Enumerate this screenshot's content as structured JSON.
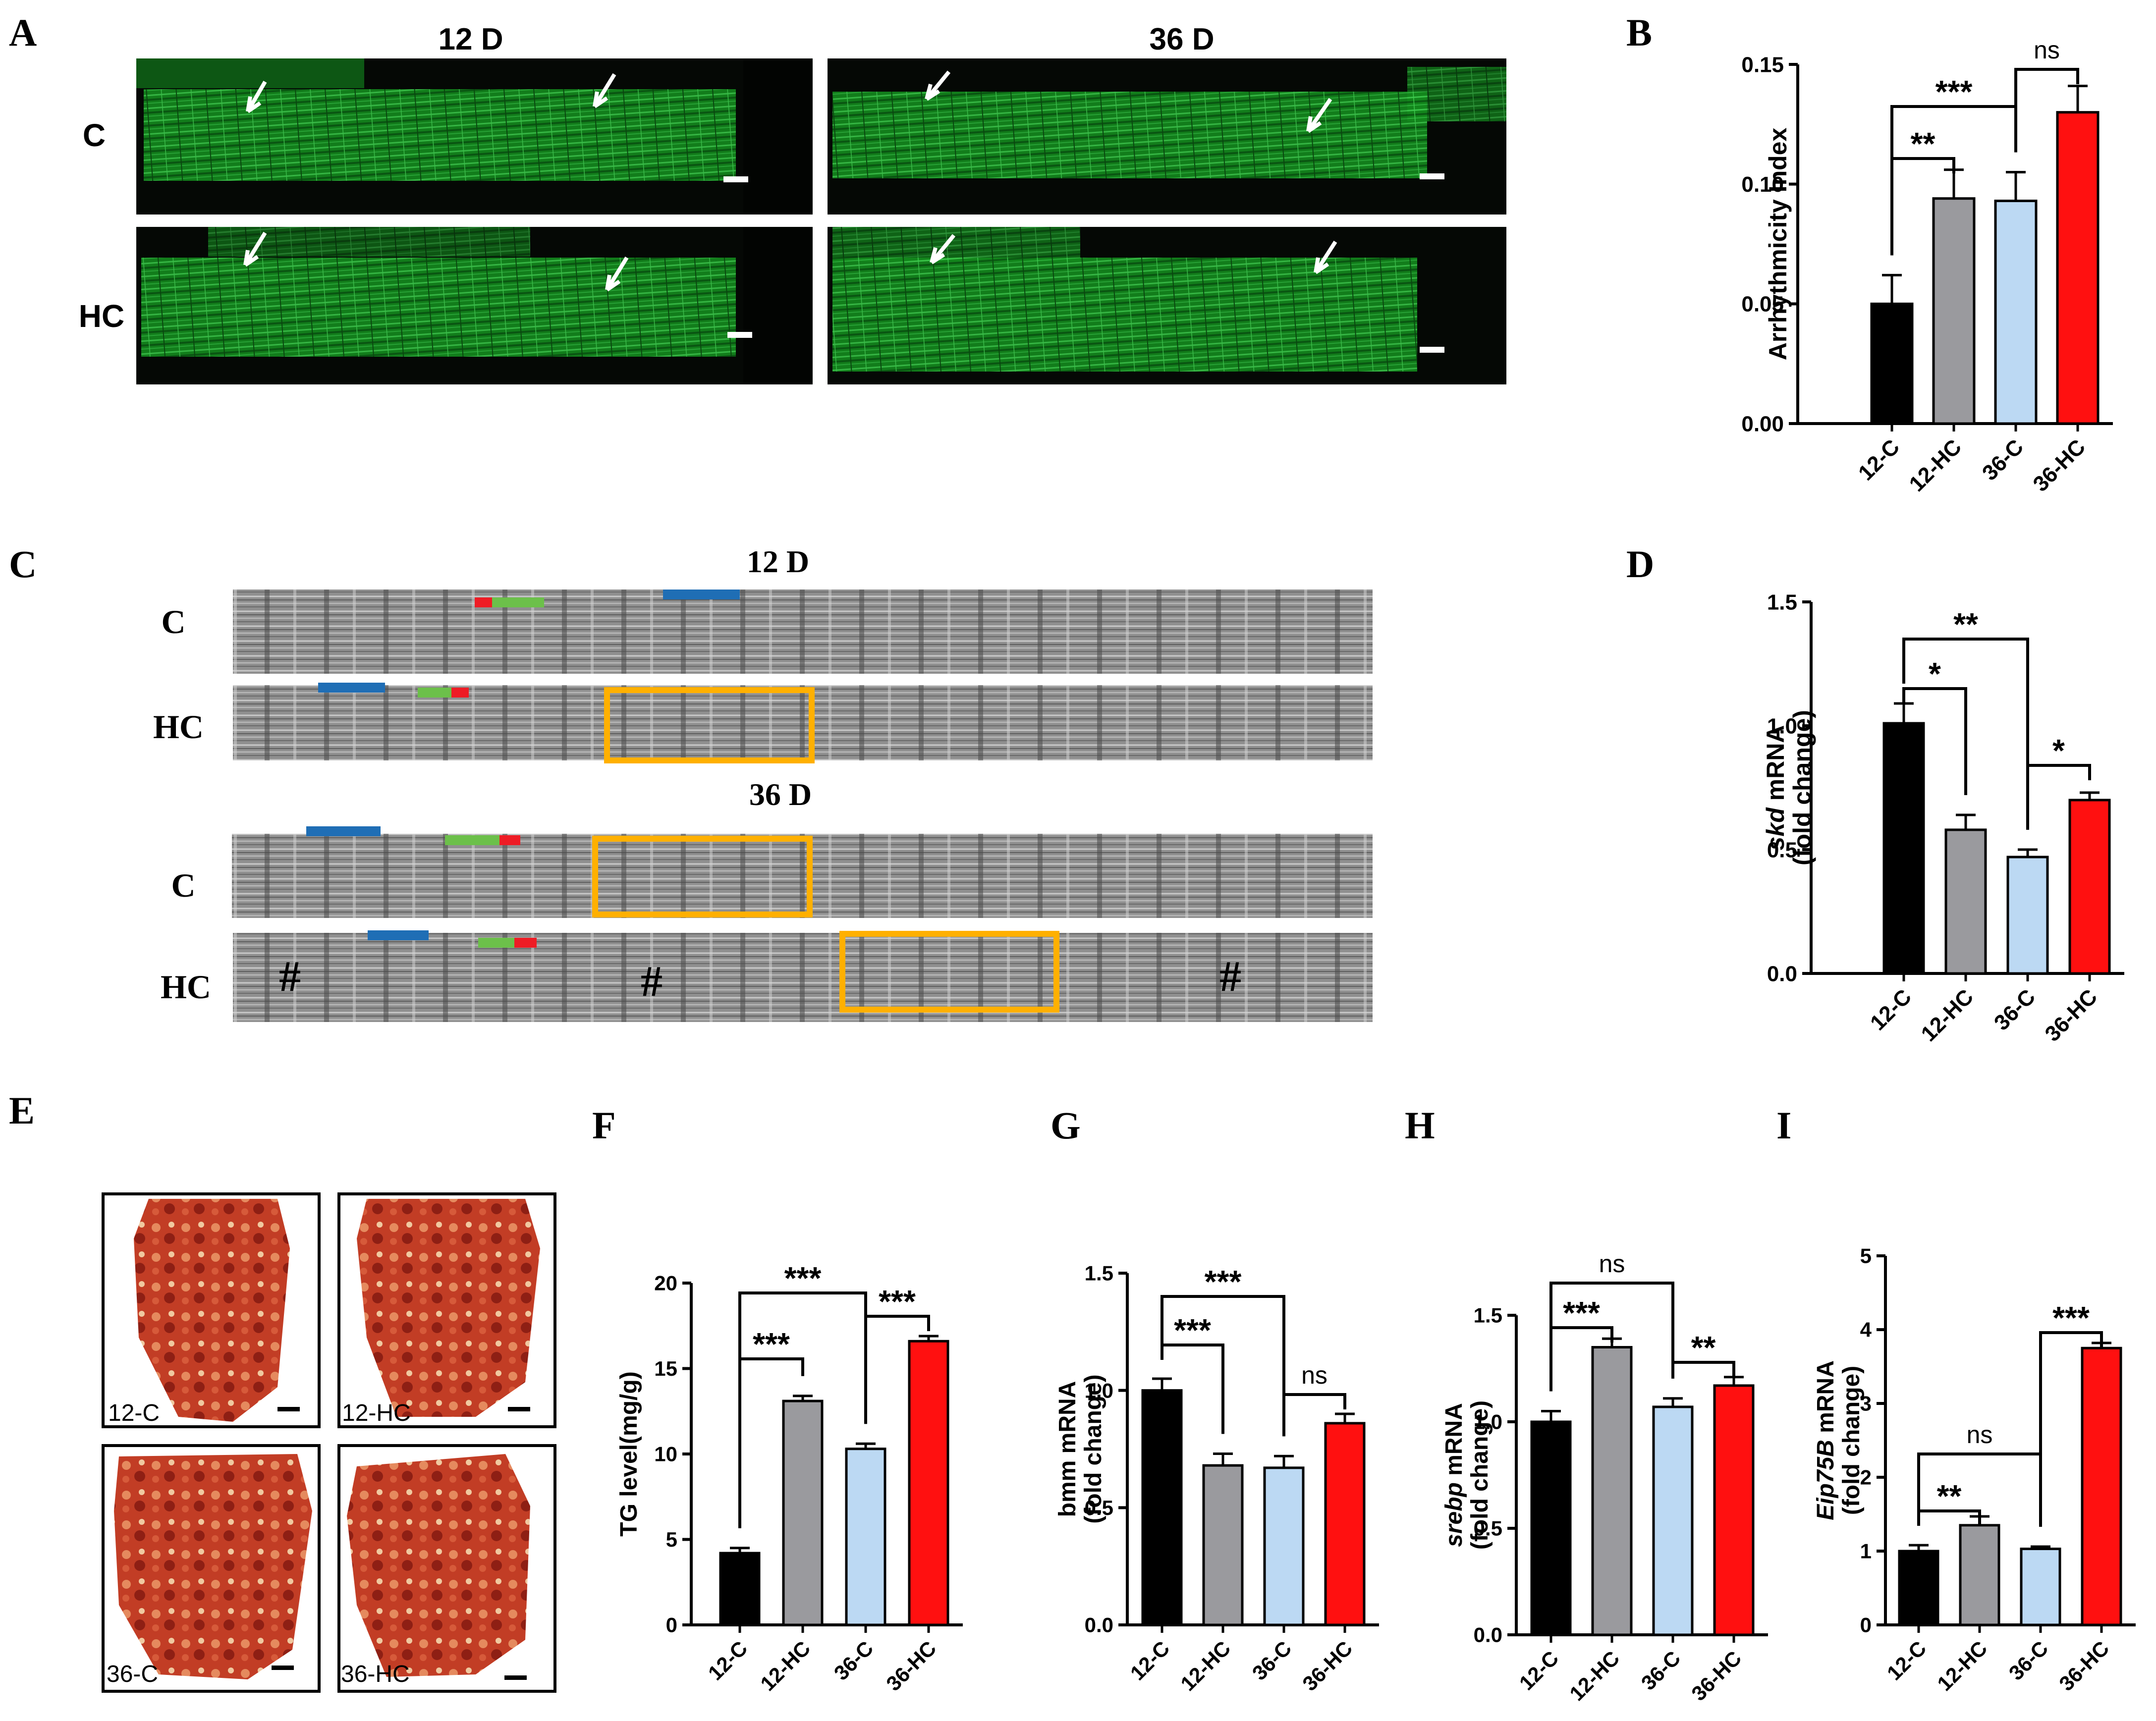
{
  "panel_labels": {
    "A": "A",
    "B": "B",
    "C": "C",
    "D": "D",
    "E": "E",
    "F": "F",
    "G": "G",
    "H": "H",
    "I": "I"
  },
  "panelA": {
    "col1": "12 D",
    "col2": "36 D",
    "row1": "C",
    "row2": "HC"
  },
  "panelC": {
    "title1": "12 D",
    "title2": "36 D",
    "rows": [
      "C",
      "HC",
      "C",
      "HC"
    ],
    "hash": "#"
  },
  "panelE": {
    "labels": [
      "12-C",
      "12-HC",
      "36-C",
      "36-HC"
    ]
  },
  "colors": {
    "bar1": "#000000",
    "bar2": "#9a9a9e",
    "bar3": "#bcd9f3",
    "bar4": "#ff1010",
    "mark_red": "#ee1c25",
    "mark_green": "#6cc04a",
    "mark_blue": "#1f6eb5",
    "box": "#ffb000",
    "fluor": "#1fa62a"
  },
  "chart_data": [
    {
      "id": "B",
      "type": "bar",
      "categories": [
        "12-C",
        "12-HC",
        "36-C",
        "36-HC"
      ],
      "values": [
        0.05,
        0.094,
        0.093,
        0.13
      ],
      "errors": [
        0.012,
        0.012,
        0.012,
        0.011
      ],
      "ylim": [
        0,
        0.15
      ],
      "yticks": [
        "0.00",
        "0.05",
        "0.10",
        "0.15"
      ],
      "ylabel": "Arrhythmicity Index",
      "ylabel_italic": "",
      "sig": [
        {
          "i": 0,
          "j": 1,
          "label": "**"
        },
        {
          "i": 0,
          "j": 2,
          "label": "***"
        },
        {
          "i": 2,
          "j": 3,
          "label": "ns"
        }
      ]
    },
    {
      "id": "D",
      "type": "bar",
      "categories": [
        "12-C",
        "12-HC",
        "36-C",
        "36-HC"
      ],
      "values": [
        1.01,
        0.58,
        0.47,
        0.7
      ],
      "errors": [
        0.08,
        0.06,
        0.03,
        0.03
      ],
      "ylim": [
        0,
        1.5
      ],
      "yticks": [
        "0.0",
        "0.5",
        "1.0",
        "1.5"
      ],
      "ylabel": "mRNA",
      "ylabel_italic": "skd",
      "ylabel2": "(fold change)",
      "sig": [
        {
          "i": 0,
          "j": 1,
          "label": "*"
        },
        {
          "i": 0,
          "j": 2,
          "label": "**"
        },
        {
          "i": 2,
          "j": 3,
          "label": "*"
        }
      ]
    },
    {
      "id": "F",
      "type": "bar",
      "categories": [
        "12-C",
        "12-HC",
        "36-C",
        "36-HC"
      ],
      "values": [
        4.2,
        13.1,
        10.3,
        16.6
      ],
      "errors": [
        0.3,
        0.3,
        0.3,
        0.3
      ],
      "ylim": [
        0,
        20
      ],
      "yticks": [
        "0",
        "5",
        "10",
        "15",
        "20"
      ],
      "ylabel": "TG level(mg/g)",
      "ylabel_italic": "",
      "sig": [
        {
          "i": 0,
          "j": 1,
          "label": "***"
        },
        {
          "i": 0,
          "j": 2,
          "label": "***"
        },
        {
          "i": 2,
          "j": 3,
          "label": "***"
        }
      ]
    },
    {
      "id": "G",
      "type": "bar",
      "categories": [
        "12-C",
        "12-HC",
        "36-C",
        "36-HC"
      ],
      "values": [
        1.0,
        0.68,
        0.67,
        0.86
      ],
      "errors": [
        0.05,
        0.05,
        0.05,
        0.04
      ],
      "ylim": [
        0,
        1.5
      ],
      "yticks": [
        "0.0",
        "0.5",
        "1.0",
        "1.5"
      ],
      "ylabel": "bmm mRNA",
      "ylabel_italic": "",
      "ylabel2": "(fold change)",
      "sig": [
        {
          "i": 0,
          "j": 1,
          "label": "***"
        },
        {
          "i": 0,
          "j": 2,
          "label": "***"
        },
        {
          "i": 2,
          "j": 3,
          "label": "ns"
        }
      ]
    },
    {
      "id": "H",
      "type": "bar",
      "categories": [
        "12-C",
        "12-HC",
        "36-C",
        "36-HC"
      ],
      "values": [
        1.0,
        1.35,
        1.07,
        1.17
      ],
      "errors": [
        0.05,
        0.04,
        0.04,
        0.04
      ],
      "ylim": [
        0,
        1.5
      ],
      "yticks": [
        "0.0",
        "0.5",
        "1.0",
        "1.5"
      ],
      "ylabel": "mRNA",
      "ylabel_italic": "srebp",
      "ylabel2": "(fold change)",
      "sig": [
        {
          "i": 0,
          "j": 1,
          "label": "***"
        },
        {
          "i": 0,
          "j": 2,
          "label": "ns"
        },
        {
          "i": 2,
          "j": 3,
          "label": "**"
        }
      ]
    },
    {
      "id": "I",
      "type": "bar",
      "categories": [
        "12-C",
        "12-HC",
        "36-C",
        "36-HC"
      ],
      "values": [
        1.0,
        1.35,
        1.03,
        3.75
      ],
      "errors": [
        0.08,
        0.12,
        0.03,
        0.07
      ],
      "ylim": [
        0,
        5
      ],
      "yticks": [
        "0",
        "1",
        "2",
        "3",
        "4",
        "5"
      ],
      "ylabel": "mRNA",
      "ylabel_italic": "Eip75B",
      "ylabel2": "(fold change)",
      "sig": [
        {
          "i": 0,
          "j": 1,
          "label": "**"
        },
        {
          "i": 0,
          "j": 2,
          "label": "ns"
        },
        {
          "i": 2,
          "j": 3,
          "label": "***"
        }
      ]
    }
  ]
}
